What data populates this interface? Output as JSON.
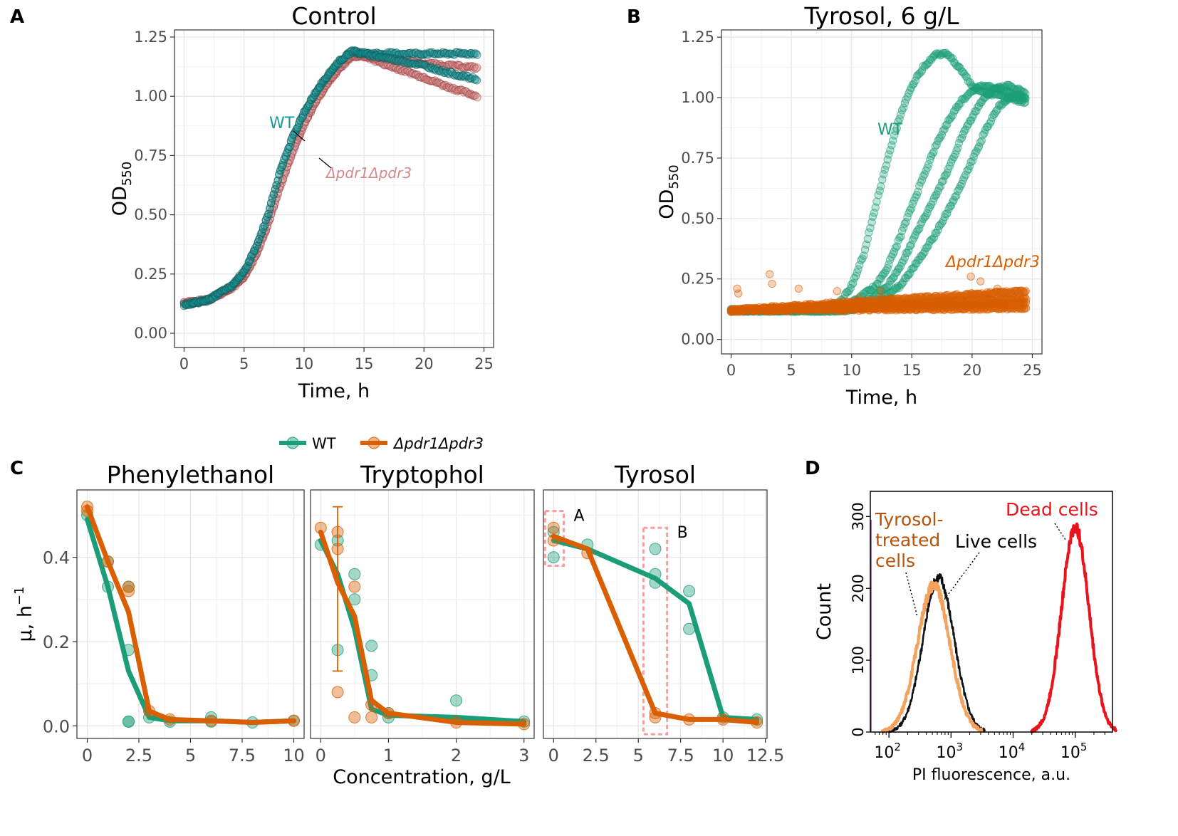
{
  "colors": {
    "wt": "#1b9e77",
    "wt_control": "#1a9a9a",
    "mutant": "#d95f02",
    "mutant_control": "#d48a8a",
    "dead": "#e8141b",
    "treated": "#f5a25d",
    "live": "#111111",
    "highlight_box": "#f4a0a0"
  },
  "chart_data": [
    {
      "panel_letter": "A",
      "type": "scatter",
      "title": "Control",
      "xlabel": "Time, h",
      "ylabel_main": "OD",
      "ylabel_sub": "550",
      "xlim": [
        -0.8,
        25.8
      ],
      "ylim": [
        -0.06,
        1.28
      ],
      "xticks": [
        0,
        5,
        10,
        15,
        20,
        25
      ],
      "xtick_labels": [
        "0",
        "5",
        "10",
        "15",
        "20",
        "25"
      ],
      "yticks": [
        0,
        0.25,
        0.5,
        0.75,
        1.0,
        1.25
      ],
      "ytick_labels": [
        "0.00",
        "0.25",
        "0.50",
        "0.75",
        "1.00",
        "1.25"
      ],
      "annotations": [
        "WT",
        "Δpdr1Δpdr3"
      ],
      "series": [
        {
          "name": "WT",
          "replicates": [
            {
              "x": [
                0,
                2,
                4,
                5,
                6,
                7,
                8,
                9,
                10,
                11,
                12,
                13,
                14,
                15,
                17,
                20,
                22,
                24.5
              ],
              "y": [
                0.12,
                0.14,
                0.2,
                0.26,
                0.36,
                0.5,
                0.68,
                0.82,
                0.93,
                1.02,
                1.09,
                1.15,
                1.19,
                1.18,
                1.18,
                1.18,
                1.18,
                1.18
              ]
            },
            {
              "x": [
                0,
                2,
                4,
                5,
                6,
                7,
                8,
                9,
                10,
                11,
                12,
                13,
                14,
                15,
                17,
                20,
                22,
                24.5
              ],
              "y": [
                0.12,
                0.14,
                0.2,
                0.26,
                0.36,
                0.5,
                0.68,
                0.82,
                0.93,
                1.02,
                1.09,
                1.15,
                1.19,
                1.18,
                1.16,
                1.13,
                1.1,
                1.07
              ]
            }
          ]
        },
        {
          "name": "Δpdr1Δpdr3",
          "replicates": [
            {
              "x": [
                0,
                2,
                4,
                5,
                6,
                7,
                8,
                9,
                10,
                11,
                12,
                13,
                14,
                15,
                17,
                20,
                22,
                24.5
              ],
              "y": [
                0.13,
                0.14,
                0.19,
                0.24,
                0.33,
                0.46,
                0.62,
                0.76,
                0.88,
                0.98,
                1.06,
                1.12,
                1.17,
                1.17,
                1.13,
                1.08,
                1.04,
                1.0
              ]
            },
            {
              "x": [
                0,
                2,
                4,
                5,
                6,
                7,
                8,
                9,
                10,
                11,
                12,
                13,
                14,
                15,
                17,
                20,
                22,
                24.5
              ],
              "y": [
                0.13,
                0.14,
                0.19,
                0.24,
                0.33,
                0.46,
                0.62,
                0.76,
                0.88,
                0.98,
                1.06,
                1.12,
                1.17,
                1.17,
                1.16,
                1.14,
                1.13,
                1.12
              ]
            }
          ]
        }
      ]
    },
    {
      "panel_letter": "B",
      "type": "scatter",
      "title": "Tyrosol, 6 g/L",
      "xlabel": "Time, h",
      "ylabel_main": "OD",
      "ylabel_sub": "550",
      "xlim": [
        -0.8,
        25.8
      ],
      "ylim": [
        -0.06,
        1.28
      ],
      "xticks": [
        0,
        5,
        10,
        15,
        20,
        25
      ],
      "xtick_labels": [
        "0",
        "5",
        "10",
        "15",
        "20",
        "25"
      ],
      "yticks": [
        0,
        0.25,
        0.5,
        0.75,
        1.0,
        1.25
      ],
      "ytick_labels": [
        "0.00",
        "0.25",
        "0.50",
        "0.75",
        "1.00",
        "1.25"
      ],
      "annotations": [
        "WT",
        "Δpdr1Δpdr3"
      ],
      "series": [
        {
          "name": "WT",
          "replicates": [
            {
              "x": [
                0,
                6,
                9,
                10,
                11,
                12,
                13,
                14,
                15,
                16,
                17,
                18,
                19,
                20,
                21,
                22,
                23,
                24.5
              ],
              "y": [
                0.12,
                0.12,
                0.15,
                0.22,
                0.35,
                0.55,
                0.75,
                0.92,
                1.05,
                1.13,
                1.18,
                1.18,
                1.12,
                1.05,
                1.02,
                1.01,
                1.0,
                1.0
              ]
            },
            {
              "x": [
                0,
                8,
                10,
                12,
                13,
                14,
                15,
                16,
                17,
                18,
                19,
                20,
                21,
                22,
                23,
                24.5
              ],
              "y": [
                0.12,
                0.12,
                0.15,
                0.22,
                0.3,
                0.42,
                0.55,
                0.68,
                0.8,
                0.9,
                0.98,
                1.03,
                1.05,
                1.04,
                1.02,
                1.0
              ]
            },
            {
              "x": [
                0,
                9,
                11,
                13,
                14,
                15,
                16,
                17,
                18,
                19,
                20,
                21,
                22,
                23,
                24.5
              ],
              "y": [
                0.12,
                0.12,
                0.15,
                0.22,
                0.3,
                0.4,
                0.5,
                0.6,
                0.7,
                0.82,
                0.92,
                1.0,
                1.04,
                1.05,
                1.02
              ]
            },
            {
              "x": [
                0,
                10,
                12,
                14,
                15,
                16,
                17,
                18,
                19,
                20,
                21,
                22,
                23,
                24.5
              ],
              "y": [
                0.12,
                0.12,
                0.15,
                0.22,
                0.29,
                0.36,
                0.44,
                0.53,
                0.63,
                0.74,
                0.85,
                0.95,
                1.0,
                0.98
              ]
            }
          ]
        },
        {
          "name": "Δpdr1Δpdr3",
          "replicates": [
            {
              "x": [
                0,
                24.5
              ],
              "y": [
                0.12,
                0.2
              ]
            },
            {
              "x": [
                0,
                24.5
              ],
              "y": [
                0.12,
                0.17
              ]
            },
            {
              "x": [
                0,
                24.5
              ],
              "y": [
                0.12,
                0.15
              ]
            },
            {
              "x": [
                0,
                24.5
              ],
              "y": [
                0.12,
                0.13
              ]
            }
          ]
        }
      ]
    },
    {
      "panel_letter": "C",
      "type": "line",
      "xlabel": "Concentration, g/L",
      "ylabel": "μ, h",
      "ylabel_sup": "−1",
      "ylim": [
        -0.03,
        0.56
      ],
      "yticks": [
        0,
        0.2,
        0.4
      ],
      "ytick_labels": [
        "0.0",
        "0.2",
        "0.4"
      ],
      "legend": [
        {
          "name": "WT"
        },
        {
          "name": "Δpdr1Δpdr3"
        }
      ],
      "facets": [
        {
          "title": "Phenylethanol",
          "xlim": [
            -0.5,
            10.5
          ],
          "xticks": [
            0,
            2.5,
            5,
            7.5,
            10
          ],
          "xtick_labels": [
            "0",
            "2.5",
            "5",
            "7.5",
            "10"
          ],
          "series": [
            {
              "name": "WT",
              "x": [
                0,
                1,
                2,
                3,
                4,
                6,
                8,
                10
              ],
              "y": [
                0.49,
                0.33,
                0.13,
                0.02,
                0.012,
                0.012,
                0.008,
                0.012
              ],
              "points": {
                "x": [
                  0,
                  1,
                  1,
                  2,
                  2,
                  2,
                  2,
                  3,
                  4,
                  6,
                  6,
                  8,
                  10
                ],
                "y": [
                  0.5,
                  0.33,
                  0.39,
                  0.01,
                  0.01,
                  0.18,
                  0.33,
                  0.02,
                  0.01,
                  0.01,
                  0.02,
                  0.008,
                  0.012
                ]
              }
            },
            {
              "name": "Δpdr1Δpdr3",
              "x": [
                0,
                1,
                2,
                3,
                4,
                6,
                8,
                10
              ],
              "y": [
                0.52,
                0.39,
                0.27,
                0.035,
                0.015,
                0.012,
                0.008,
                0.012
              ],
              "points": {
                "x": [
                  0,
                  0,
                  1,
                  2,
                  2,
                  3,
                  4,
                  6,
                  10
                ],
                "y": [
                  0.52,
                  0.51,
                  0.39,
                  0.33,
                  0.32,
                  0.035,
                  0.015,
                  0.012,
                  0.012
                ]
              }
            }
          ]
        },
        {
          "title": "Tryptophol",
          "xlim": [
            -0.15,
            3.15
          ],
          "xticks": [
            0,
            1,
            2,
            3
          ],
          "xtick_labels": [
            "0",
            "1",
            "2",
            "3"
          ],
          "series": [
            {
              "name": "WT",
              "x": [
                0,
                0.25,
                0.5,
                0.75,
                1,
                2,
                3
              ],
              "y": [
                0.44,
                0.36,
                0.23,
                0.04,
                0.025,
                0.02,
                0.01
              ],
              "points": {
                "x": [
                  0,
                  0.25,
                  0.25,
                  0.5,
                  0.5,
                  0.75,
                  0.75,
                  1,
                  1,
                  2,
                  3
                ],
                "y": [
                  0.43,
                  0.44,
                  0.18,
                  0.36,
                  0.3,
                  0.19,
                  0.12,
                  0.02,
                  0.03,
                  0.06,
                  0.01
                ]
              }
            },
            {
              "name": "Δpdr1Δpdr3",
              "x": [
                0,
                0.25,
                0.5,
                0.75,
                1,
                2,
                3
              ],
              "y": [
                0.46,
                0.34,
                0.26,
                0.06,
                0.03,
                0.008,
                0.004
              ],
              "points": {
                "x": [
                  0,
                  0.25,
                  0.25,
                  0.25,
                  0.5,
                  0.5,
                  0.75,
                  0.75,
                  1,
                  2,
                  3
                ],
                "y": [
                  0.47,
                  0.46,
                  0.42,
                  0.08,
                  0.33,
                  0.02,
                  0.05,
                  0.02,
                  0.03,
                  0.008,
                  0.004
                ]
              },
              "errorbar": {
                "x": 0.25,
                "lo": 0.13,
                "hi": 0.52
              }
            }
          ]
        },
        {
          "title": "Tyrosol",
          "xlim": [
            -0.6,
            12.6
          ],
          "xticks": [
            0,
            2.5,
            5,
            7.5,
            10,
            12.5
          ],
          "xtick_labels": [
            "0",
            "2.5",
            "5",
            "7.5",
            "10",
            "12.5"
          ],
          "boxes": [
            {
              "label": "A",
              "x0": -0.5,
              "x1": 0.6,
              "y0": 0.38,
              "y1": 0.51
            },
            {
              "label": "B",
              "x0": 5.3,
              "x1": 6.7,
              "y0": -0.02,
              "y1": 0.47
            }
          ],
          "series": [
            {
              "name": "WT",
              "x": [
                0,
                2,
                6,
                8,
                10,
                12
              ],
              "y": [
                0.44,
                0.42,
                0.35,
                0.29,
                0.02,
                0.015
              ],
              "points": {
                "x": [
                  0,
                  0,
                  2,
                  6,
                  6,
                  6,
                  8,
                  8,
                  10,
                  12
                ],
                "y": [
                  0.4,
                  0.46,
                  0.43,
                  0.42,
                  0.36,
                  0.34,
                  0.32,
                  0.23,
                  0.02,
                  0.015
                ]
              }
            },
            {
              "name": "Δpdr1Δpdr3",
              "x": [
                0,
                2,
                6,
                8,
                10,
                12
              ],
              "y": [
                0.45,
                0.42,
                0.03,
                0.015,
                0.015,
                0.008
              ],
              "points": {
                "x": [
                  0,
                  0,
                  2,
                  6,
                  6,
                  8,
                  10,
                  12
                ],
                "y": [
                  0.47,
                  0.44,
                  0.41,
                  0.03,
                  0.02,
                  0.015,
                  0.015,
                  0.008
                ]
              }
            }
          ]
        }
      ]
    },
    {
      "panel_letter": "D",
      "type": "area",
      "xlabel": "PI fluorescence, a.u.",
      "ylabel": "Count",
      "ylim": [
        0,
        335
      ],
      "yticks": [
        0,
        100,
        200,
        300
      ],
      "ytick_labels": [
        "0",
        "100",
        "200",
        "300"
      ],
      "x_log_range": [
        1.7,
        5.6
      ],
      "xtick_powers": [
        "2",
        "3",
        "4",
        "5"
      ],
      "annotations": {
        "treated_line1": "Tyrosol-",
        "treated_line2": "treated",
        "treated_line3": "cells",
        "live": "Live cells",
        "dead": "Dead cells"
      },
      "series": [
        {
          "name": "Tyrosol-treated cells",
          "peak_log10": 2.72,
          "peak": 205,
          "width_log10": 0.26
        },
        {
          "name": "Live cells",
          "peak_log10": 2.8,
          "peak": 215,
          "width_log10": 0.25
        },
        {
          "name": "Dead cells",
          "peak_log10": 5.0,
          "peak": 285,
          "width_log10": 0.22
        }
      ]
    }
  ]
}
